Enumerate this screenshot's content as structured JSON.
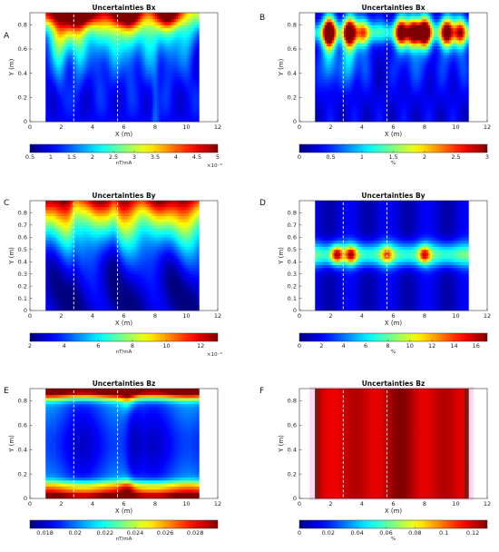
{
  "chart_data": [
    {
      "id": "A",
      "panel_label": "A",
      "type": "heatmap",
      "title": "Uncertainties Bx",
      "xlabel": "X (m)",
      "ylabel": "Y (m)",
      "xlim": [
        0,
        12
      ],
      "ylim": [
        0,
        0.9
      ],
      "xticks": [
        0,
        2,
        4,
        6,
        8,
        10,
        12
      ],
      "yticks": [
        0,
        0.2,
        0.4,
        0.6,
        0.8
      ],
      "data_extent_x": [
        1,
        10.8
      ],
      "data_extent_y": [
        0,
        0.9
      ],
      "dashed_lines_x": [
        2.8,
        5.6
      ],
      "colorbar": {
        "min": 0.5,
        "max": 5,
        "ticks": [
          0.5,
          1,
          1.5,
          2,
          2.5,
          3,
          3.5,
          4,
          4.5,
          5
        ],
        "unit": "nT/mA",
        "exponent": "×10⁻³"
      },
      "pattern": "vertical-streaks"
    },
    {
      "id": "B",
      "panel_label": "B",
      "type": "heatmap",
      "title": "Uncertainties Bx",
      "xlabel": "X (m)",
      "ylabel": "Y (m)",
      "xlim": [
        0,
        12
      ],
      "ylim": [
        0,
        0.9
      ],
      "xticks": [
        0,
        2,
        4,
        6,
        8,
        10,
        12
      ],
      "yticks": [
        0,
        0.2,
        0.4,
        0.6,
        0.8
      ],
      "data_extent_x": [
        1,
        10.8
      ],
      "data_extent_y": [
        0,
        0.9
      ],
      "dashed_lines_x": [
        2.8,
        5.6
      ],
      "colorbar": {
        "min": 0,
        "max": 3,
        "ticks": [
          0,
          0.5,
          1,
          1.5,
          2,
          2.5,
          3
        ],
        "unit": "%",
        "exponent": ""
      },
      "pattern": "hotspots-top",
      "hotspots_x": [
        1.9,
        3.2,
        4.1,
        6.5,
        7.3,
        8.0,
        9.4,
        10.3
      ]
    },
    {
      "id": "C",
      "panel_label": "C",
      "type": "heatmap",
      "title": "Uncertainties By",
      "xlabel": "X (m)",
      "ylabel": "Y (m)",
      "xlim": [
        0,
        12
      ],
      "ylim": [
        0,
        0.9
      ],
      "xticks": [
        0,
        2,
        4,
        6,
        8,
        10,
        12
      ],
      "yticks": [
        0,
        0.1,
        0.2,
        0.3,
        0.4,
        0.5,
        0.6,
        0.7,
        0.8
      ],
      "data_extent_x": [
        1,
        10.8
      ],
      "data_extent_y": [
        0,
        0.9
      ],
      "dashed_lines_x": [
        2.8,
        5.6
      ],
      "colorbar": {
        "min": 2,
        "max": 13,
        "ticks": [
          2,
          4,
          6,
          8,
          10,
          12
        ],
        "unit": "nT/mA",
        "exponent": "×10⁻³"
      },
      "pattern": "top-gradient"
    },
    {
      "id": "D",
      "panel_label": "D",
      "type": "heatmap",
      "title": "Uncertainties By",
      "xlabel": "X (m)",
      "ylabel": "Y (m)",
      "xlim": [
        0,
        12
      ],
      "ylim": [
        0,
        0.9
      ],
      "xticks": [
        0,
        2,
        4,
        6,
        8,
        10,
        12
      ],
      "yticks": [
        0,
        0.1,
        0.2,
        0.3,
        0.4,
        0.5,
        0.6,
        0.7,
        0.8
      ],
      "data_extent_x": [
        1,
        10.8
      ],
      "data_extent_y": [
        0,
        0.9
      ],
      "dashed_lines_x": [
        2.8,
        5.6
      ],
      "colorbar": {
        "min": 0,
        "max": 17,
        "ticks": [
          0,
          2,
          4,
          6,
          8,
          10,
          12,
          14,
          16
        ],
        "unit": "%",
        "exponent": ""
      },
      "pattern": "middle-band",
      "band_y": 0.46,
      "hotspots_x": [
        2.4,
        3.3,
        5.6,
        8.0
      ]
    },
    {
      "id": "E",
      "panel_label": "E",
      "type": "heatmap",
      "title": "Uncertainties Bz",
      "xlabel": "X (m)",
      "ylabel": "Y (m)",
      "xlim": [
        0,
        12
      ],
      "ylim": [
        0,
        0.9
      ],
      "xticks": [
        0,
        2,
        4,
        6,
        8,
        10,
        12
      ],
      "yticks": [
        0,
        0.2,
        0.4,
        0.6,
        0.8
      ],
      "data_extent_x": [
        1,
        10.8
      ],
      "data_extent_y": [
        0,
        0.9
      ],
      "dashed_lines_x": [
        2.8,
        5.6
      ],
      "colorbar": {
        "min": 0.017,
        "max": 0.0295,
        "ticks": [
          0.018,
          0.02,
          0.022,
          0.024,
          0.026,
          0.028
        ],
        "unit": "nT/mA",
        "exponent": ""
      },
      "pattern": "top-bottom-bands"
    },
    {
      "id": "F",
      "panel_label": "F",
      "type": "heatmap",
      "title": "Uncertainties Bz",
      "xlabel": "X (m)",
      "ylabel": "Y (m)",
      "xlim": [
        0,
        12
      ],
      "ylim": [
        0,
        0.9
      ],
      "xticks": [
        0,
        2,
        4,
        6,
        8,
        10,
        12
      ],
      "yticks": [
        0,
        0.2,
        0.4,
        0.6,
        0.8
      ],
      "data_extent_x": [
        1,
        10.8
      ],
      "data_extent_y": [
        0,
        0.9
      ],
      "dashed_lines_x": [
        2.8,
        5.6
      ],
      "colorbar": {
        "min": 0,
        "max": 0.13,
        "ticks": [
          0,
          0.02,
          0.04,
          0.06,
          0.08,
          0.1,
          0.12
        ],
        "unit": "%",
        "exponent": ""
      },
      "pattern": "saturated"
    }
  ]
}
